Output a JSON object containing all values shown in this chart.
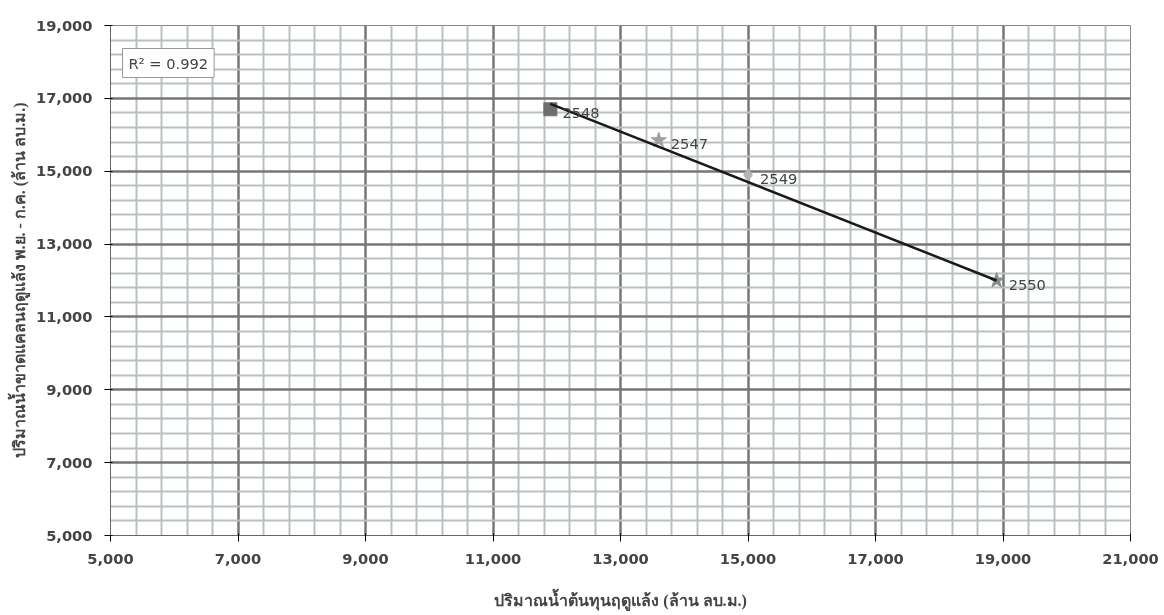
{
  "chart_data": {
    "type": "scatter",
    "xlabel": "ปริมาณน้ำต้นทุนฤดูแล้ง (ล้าน ลบ.ม.)",
    "ylabel": "ปริมาณน้ำขาดแคลนฤดูแล้ง พ.ย. - ก.ค. (ล้าน ลบ.ม.)",
    "xlim": [
      5000,
      21000
    ],
    "ylim": [
      5000,
      19000
    ],
    "xticks": [
      {
        "value": 5000,
        "label": "5,000"
      },
      {
        "value": 7000,
        "label": "7,000"
      },
      {
        "value": 9000,
        "label": "9,000"
      },
      {
        "value": 11000,
        "label": "11,000"
      },
      {
        "value": 13000,
        "label": "13,000"
      },
      {
        "value": 15000,
        "label": "15,000"
      },
      {
        "value": 17000,
        "label": "17,000"
      },
      {
        "value": 19000,
        "label": "19,000"
      },
      {
        "value": 21000,
        "label": "21,000"
      }
    ],
    "yticks": [
      {
        "value": 5000,
        "label": "5,000"
      },
      {
        "value": 7000,
        "label": "7,000"
      },
      {
        "value": 9000,
        "label": "9,000"
      },
      {
        "value": 11000,
        "label": "11,000"
      },
      {
        "value": 13000,
        "label": "13,000"
      },
      {
        "value": 15000,
        "label": "15,000"
      },
      {
        "value": 17000,
        "label": "17,000"
      },
      {
        "value": 19000,
        "label": "19,000"
      }
    ],
    "grid": true,
    "annotations": [
      "R² = 0.992"
    ],
    "series": [
      {
        "name": "2548",
        "color": "#6d6d6d",
        "marker": "square",
        "x": [
          11900
        ],
        "values": [
          16700
        ]
      },
      {
        "name": "2547",
        "color": "#a0a0a0",
        "marker": "star",
        "x": [
          13600
        ],
        "values": [
          15850
        ]
      },
      {
        "name": "2549",
        "color": "#b5b5b5",
        "marker": "diamond",
        "x": [
          15000
        ],
        "values": [
          14900
        ]
      },
      {
        "name": "2550",
        "color": "#8a8a8a",
        "marker": "star",
        "x": [
          18900
        ],
        "values": [
          12000
        ]
      },
      {
        "type": "line",
        "color": "#1a1a1a",
        "line_style": "solid",
        "marker": "none",
        "x": [
          11900,
          18900
        ],
        "values": [
          16850,
          12000
        ]
      }
    ]
  }
}
